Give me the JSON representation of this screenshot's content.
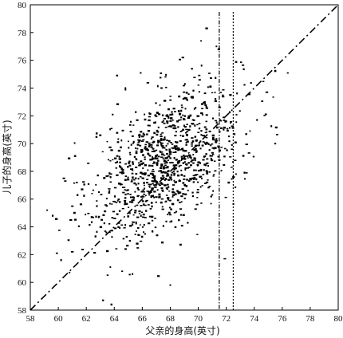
{
  "chart_data": {
    "type": "scatter",
    "title": "",
    "xlabel": "父亲的身高(英寸)",
    "ylabel": "儿子的身高(英寸)",
    "xlim": [
      58,
      80
    ],
    "ylim": [
      58,
      80
    ],
    "xticks": [
      58,
      60,
      62,
      64,
      66,
      68,
      70,
      72,
      74,
      76,
      78,
      80
    ],
    "yticks": [
      58,
      60,
      62,
      64,
      66,
      68,
      70,
      72,
      74,
      76,
      78,
      80
    ],
    "grid": false,
    "legend": "none",
    "reference_line": {
      "style": "dash-dot",
      "from": [
        58,
        58
      ],
      "to": [
        80,
        80
      ]
    },
    "vertical_lines": [
      {
        "x": 71.5,
        "style": "dash-dot"
      },
      {
        "x": 72.5,
        "style": "dotted"
      }
    ],
    "series": [
      {
        "points_estimated": true,
        "point_count": 1078,
        "mean_x": 67.7,
        "mean_y": 68.7,
        "sd_x": 2.7,
        "sd_y": 2.8,
        "correlation": 0.5,
        "color": "#000000",
        "sample_points": [
          [
            59.2,
            65.2
          ],
          [
            59.6,
            64.8
          ],
          [
            59.9,
            62.1
          ],
          [
            60.2,
            61.6
          ],
          [
            60.5,
            67.3
          ],
          [
            60.8,
            60.7
          ],
          [
            61.0,
            62.2
          ],
          [
            61.2,
            69.1
          ],
          [
            61.7,
            66.7
          ],
          [
            62.4,
            64.7
          ],
          [
            63.2,
            58.7
          ],
          [
            63.8,
            58.4
          ],
          [
            63.0,
            70.6
          ],
          [
            64.2,
            74.9
          ],
          [
            64.8,
            73.9
          ],
          [
            68.9,
            76.2
          ],
          [
            70.2,
            77.4
          ],
          [
            70.6,
            78.3
          ],
          [
            71.3,
            77.0
          ],
          [
            72.3,
            73.5
          ],
          [
            74.2,
            71.7
          ],
          [
            74.9,
            73.7
          ],
          [
            75.5,
            70.0
          ],
          [
            73.7,
            70.9
          ],
          [
            72.7,
            67.8
          ],
          [
            73.3,
            67.9
          ],
          [
            71.9,
            61.7
          ],
          [
            71.0,
            66.3
          ],
          [
            68.0,
            59.8
          ],
          [
            65.3,
            60.6
          ]
        ]
      }
    ]
  }
}
